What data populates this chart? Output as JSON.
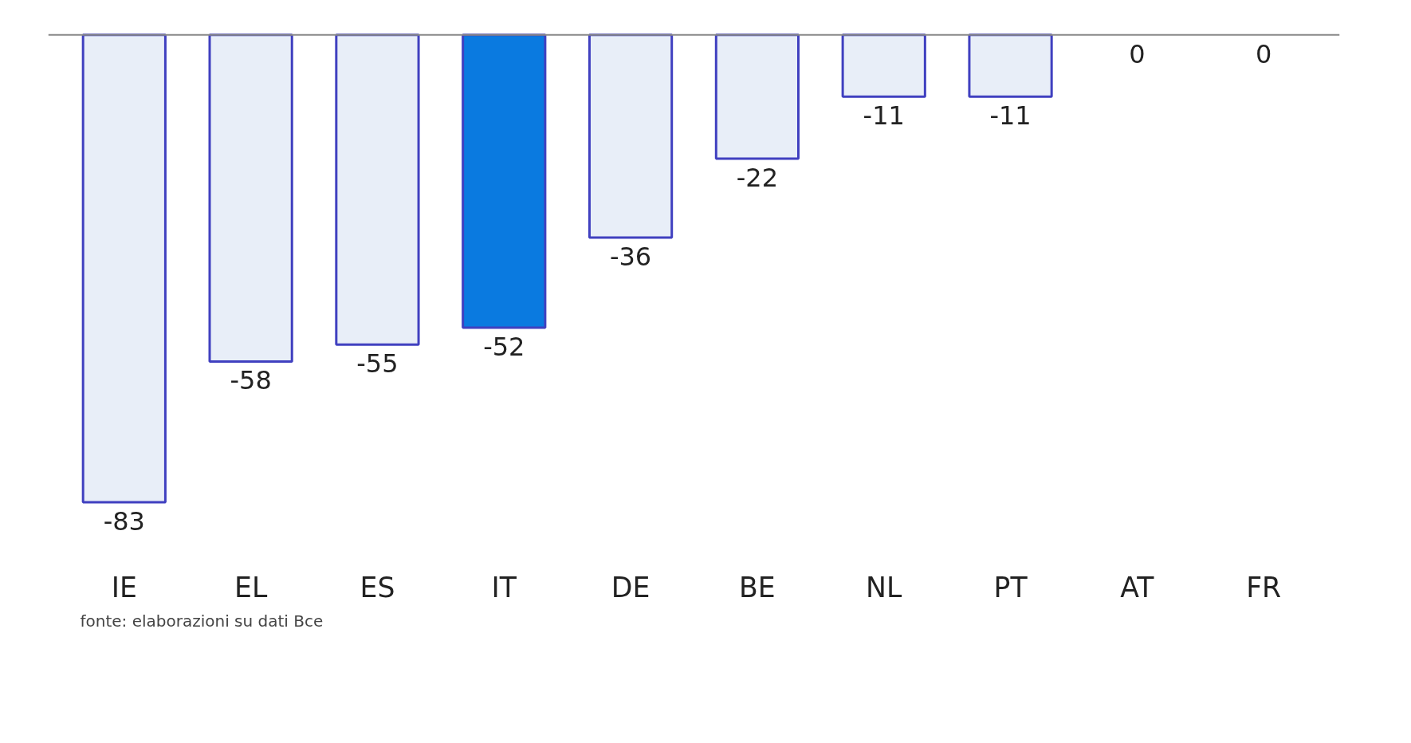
{
  "chart_data": {
    "type": "bar",
    "categories": [
      "IE",
      "EL",
      "ES",
      "IT",
      "DE",
      "BE",
      "NL",
      "PT",
      "AT",
      "FR"
    ],
    "values": [
      -83,
      -58,
      -55,
      -52,
      -36,
      -22,
      -11,
      -11,
      0,
      0
    ],
    "colors": [
      "#e8eef8",
      "#e8eef8",
      "#e8eef8",
      "#0a7ae0",
      "#e8eef8",
      "#e8eef8",
      "#e8eef8",
      "#e8eef8",
      "#e8eef8",
      "#e8eef8"
    ],
    "data_labels": true,
    "grid": false,
    "annotations": [
      "fonte: elaborazioni su dati Bce"
    ]
  }
}
